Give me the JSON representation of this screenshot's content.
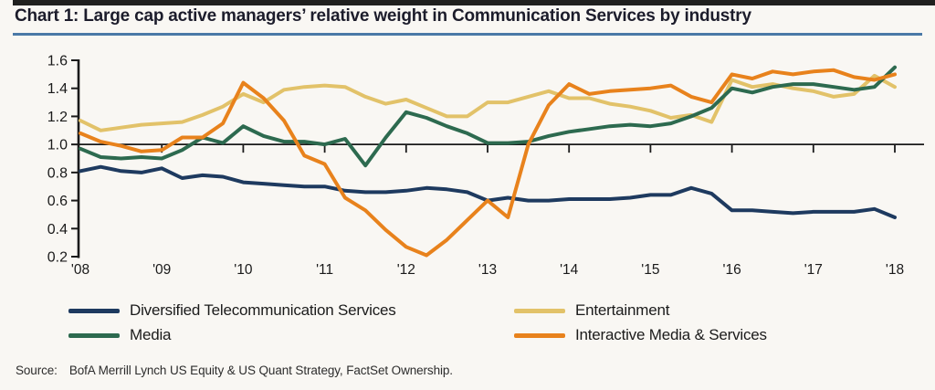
{
  "page": {
    "title": "Chart 1: Large cap active managers’ relative weight in Communication Services by industry",
    "source_label": "Source:",
    "source_text": "BofA Merrill Lynch US Equity & US Quant Strategy, FactSet Ownership."
  },
  "colors": {
    "title_text": "#1c1c2b",
    "title_underline": "#4a79a7",
    "top_rule": "#20201f",
    "axis": "#1a1a1a",
    "background": "#f9f7f3"
  },
  "chart_data": {
    "type": "line",
    "title": "Large cap active managers relative weight in Communication Services by industry",
    "xlabel": "",
    "ylabel": "",
    "xlim": [
      2008,
      2018
    ],
    "ylim": [
      0.2,
      1.6
    ],
    "baseline": 1.0,
    "grid": false,
    "legend_position": "bottom",
    "y_ticks": [
      1.6,
      1.4,
      1.2,
      1.0,
      0.8,
      0.6,
      0.4,
      0.2
    ],
    "y_tick_labels": [
      "1.6",
      "1.4",
      "1.2",
      "1.0",
      "0.8",
      "0.6",
      "0.4",
      "0.2"
    ],
    "x_tick_years": [
      2008,
      2009,
      2010,
      2011,
      2012,
      2013,
      2014,
      2015,
      2016,
      2017,
      2018
    ],
    "x_tick_labels": [
      "'08",
      "'09",
      "'10",
      "'11",
      "'12",
      "'13",
      "'14",
      "'15",
      "'16",
      "'17",
      "'18"
    ],
    "x": [
      2008.0,
      2008.25,
      2008.5,
      2008.75,
      2009.0,
      2009.25,
      2009.5,
      2009.75,
      2010.0,
      2010.25,
      2010.5,
      2010.75,
      2011.0,
      2011.25,
      2011.5,
      2011.75,
      2012.0,
      2012.25,
      2012.5,
      2012.75,
      2013.0,
      2013.25,
      2013.5,
      2013.75,
      2014.0,
      2014.25,
      2014.5,
      2014.75,
      2015.0,
      2015.25,
      2015.5,
      2015.75,
      2016.0,
      2016.25,
      2016.5,
      2016.75,
      2017.0,
      2017.25,
      2017.5,
      2017.75,
      2018.0
    ],
    "series": [
      {
        "name": "Diversified Telecommunication Services",
        "color": "#1e3a5f",
        "values": [
          0.81,
          0.84,
          0.81,
          0.8,
          0.83,
          0.76,
          0.78,
          0.77,
          0.73,
          0.72,
          0.71,
          0.7,
          0.7,
          0.67,
          0.66,
          0.66,
          0.67,
          0.69,
          0.68,
          0.66,
          0.6,
          0.62,
          0.6,
          0.6,
          0.61,
          0.61,
          0.61,
          0.62,
          0.64,
          0.64,
          0.69,
          0.65,
          0.53,
          0.53,
          0.52,
          0.51,
          0.52,
          0.52,
          0.52,
          0.54,
          0.48
        ]
      },
      {
        "name": "Entertainment",
        "color": "#e2c269",
        "values": [
          1.17,
          1.1,
          1.12,
          1.14,
          1.15,
          1.16,
          1.21,
          1.27,
          1.36,
          1.3,
          1.39,
          1.41,
          1.42,
          1.41,
          1.34,
          1.29,
          1.32,
          1.26,
          1.2,
          1.2,
          1.3,
          1.3,
          1.34,
          1.38,
          1.33,
          1.33,
          1.29,
          1.27,
          1.24,
          1.19,
          1.21,
          1.16,
          1.46,
          1.41,
          1.43,
          1.4,
          1.38,
          1.34,
          1.36,
          1.49,
          1.41
        ]
      },
      {
        "name": "Media",
        "color": "#2d6a4f",
        "values": [
          0.97,
          0.91,
          0.9,
          0.91,
          0.9,
          0.96,
          1.05,
          1.01,
          1.13,
          1.06,
          1.02,
          1.02,
          1.0,
          1.04,
          0.85,
          1.05,
          1.23,
          1.19,
          1.13,
          1.08,
          1.01,
          1.01,
          1.02,
          1.06,
          1.09,
          1.11,
          1.13,
          1.14,
          1.13,
          1.15,
          1.2,
          1.26,
          1.4,
          1.37,
          1.41,
          1.43,
          1.43,
          1.41,
          1.39,
          1.41,
          1.55
        ]
      },
      {
        "name": "Interactive Media & Services",
        "color": "#e8821c",
        "values": [
          1.08,
          1.02,
          0.99,
          0.95,
          0.96,
          1.05,
          1.05,
          1.15,
          1.44,
          1.33,
          1.17,
          0.92,
          0.86,
          0.62,
          0.53,
          0.39,
          0.27,
          0.21,
          0.32,
          0.46,
          0.6,
          0.48,
          1.0,
          1.28,
          1.43,
          1.36,
          1.38,
          1.39,
          1.4,
          1.42,
          1.34,
          1.3,
          1.5,
          1.47,
          1.52,
          1.5,
          1.52,
          1.53,
          1.48,
          1.46,
          1.5
        ]
      }
    ]
  }
}
